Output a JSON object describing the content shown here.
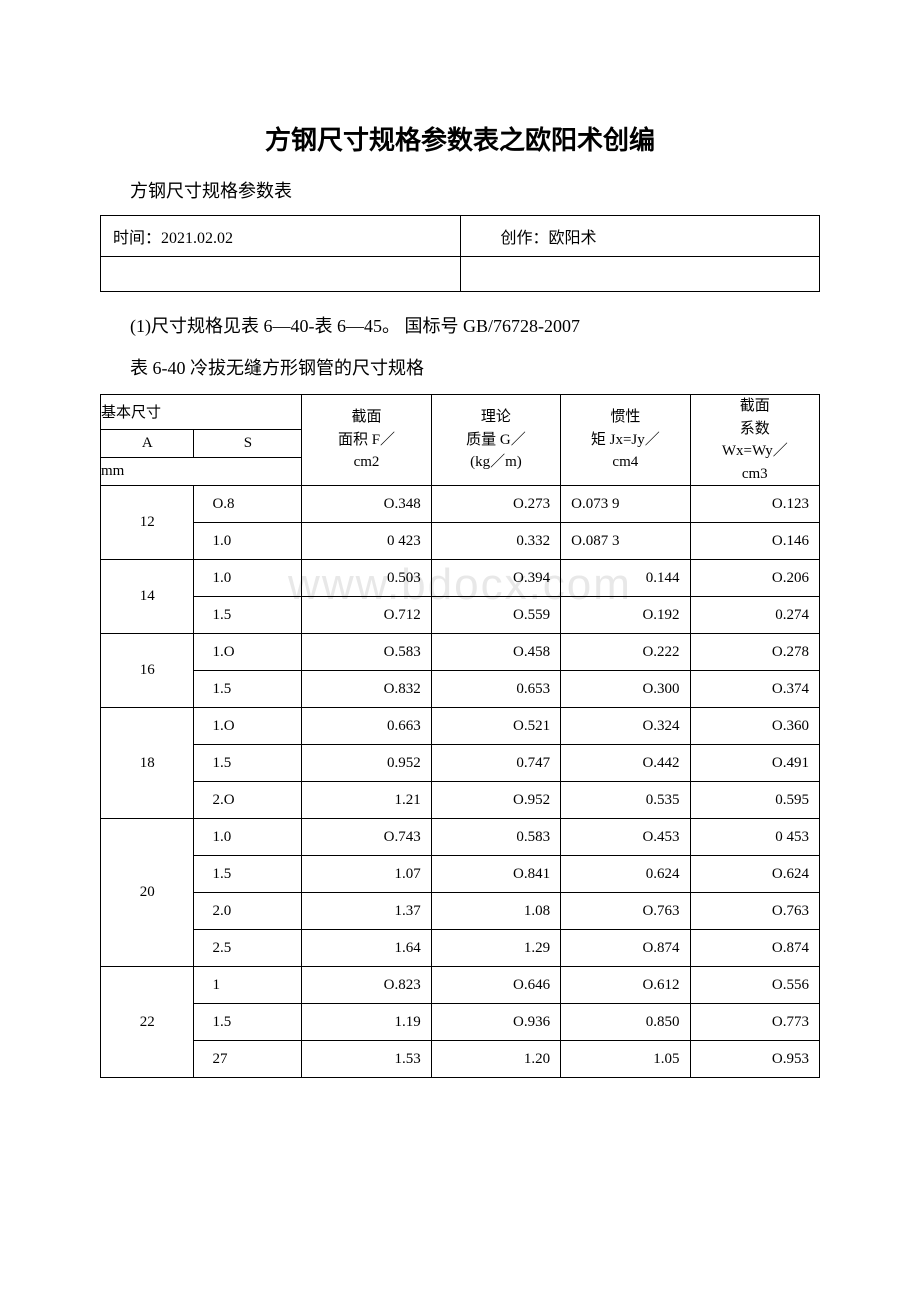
{
  "title": "方钢尺寸规格参数表之欧阳术创编",
  "subtitle": "方钢尺寸规格参数表",
  "meta": {
    "time_label": "时间：",
    "time_value": "2021.02.02",
    "author_label": "创作：",
    "author_value": "欧阳术"
  },
  "note1": "(1)尺寸规格见表 6—40-表 6—45。 国标号 GB/76728-2007",
  "note2": "表 6-40 冷拔无缝方形钢管的尺寸规格",
  "watermark": "www.bdocx.com",
  "headers": {
    "basic": "基本尺寸",
    "A": "A",
    "S": "S",
    "mm": "mm",
    "F_line1": "截面",
    "F_line2": "面积 F／",
    "F_line3": "cm2",
    "G_line1": "理论",
    "G_line2": "质量 G／",
    "G_line3": "(kg／m)",
    "J_line1": "惯性",
    "J_line2": "矩 Jx=Jy／",
    "J_line3": "cm4",
    "W_line1": "截面",
    "W_line2": "系数",
    "W_line3": "Wx=Wy／",
    "W_line4": "cm3"
  },
  "rows": [
    {
      "A": "12",
      "sub": [
        {
          "S": "O.8",
          "F": "O.348",
          "G": "O.273",
          "J": "O.073 9",
          "W": "O.123"
        },
        {
          "S": "1.0",
          "F": "0 423",
          "G": "0.332",
          "J": "O.087 3",
          "W": "O.146"
        }
      ]
    },
    {
      "A": "14",
      "sub": [
        {
          "S": "1.0",
          "F": "0.503",
          "G": "O.394",
          "J": "0.144",
          "W": "O.206"
        },
        {
          "S": "1.5",
          "F": "O.712",
          "G": "O.559",
          "J": "O.192",
          "W": "0.274"
        }
      ]
    },
    {
      "A": "16",
      "sub": [
        {
          "S": "1.O",
          "F": "O.583",
          "G": "O.458",
          "J": "O.222",
          "W": "O.278"
        },
        {
          "S": "1.5",
          "F": "O.832",
          "G": "0.653",
          "J": "O.300",
          "W": "O.374"
        }
      ]
    },
    {
      "A": "18",
      "sub": [
        {
          "S": "1.O",
          "F": "0.663",
          "G": "O.521",
          "J": "O.324",
          "W": "O.360"
        },
        {
          "S": "1.5",
          "F": "0.952",
          "G": "0.747",
          "J": "O.442",
          "W": "O.491"
        },
        {
          "S": "2.O",
          "F": "1.21",
          "G": "O.952",
          "J": "0.535",
          "W": "0.595"
        }
      ]
    },
    {
      "A": "20",
      "sub": [
        {
          "S": "1.0",
          "F": "O.743",
          "G": "0.583",
          "J": "O.453",
          "W": "0 453"
        },
        {
          "S": "1.5",
          "F": "1.07",
          "G": "O.841",
          "J": "0.624",
          "W": "O.624"
        },
        {
          "S": "2.0",
          "F": "1.37",
          "G": "1.08",
          "J": "O.763",
          "W": "O.763"
        },
        {
          "S": "2.5",
          "F": "1.64",
          "G": "1.29",
          "J": "O.874",
          "W": "O.874"
        }
      ]
    },
    {
      "A": "22",
      "sub": [
        {
          "S": "1",
          "F": "O.823",
          "G": "O.646",
          "J": "O.612",
          "W": "O.556"
        },
        {
          "S": "1.5",
          "F": "1.19",
          "G": "O.936",
          "J": "0.850",
          "W": "O.773"
        },
        {
          "S": "27",
          "F": "1.53",
          "G": "1.20",
          "J": "1.05",
          "W": "O.953"
        }
      ]
    }
  ],
  "col_widths": {
    "A": "13%",
    "S": "15%",
    "F": "18%",
    "G": "18%",
    "J": "18%",
    "W": "18%"
  }
}
